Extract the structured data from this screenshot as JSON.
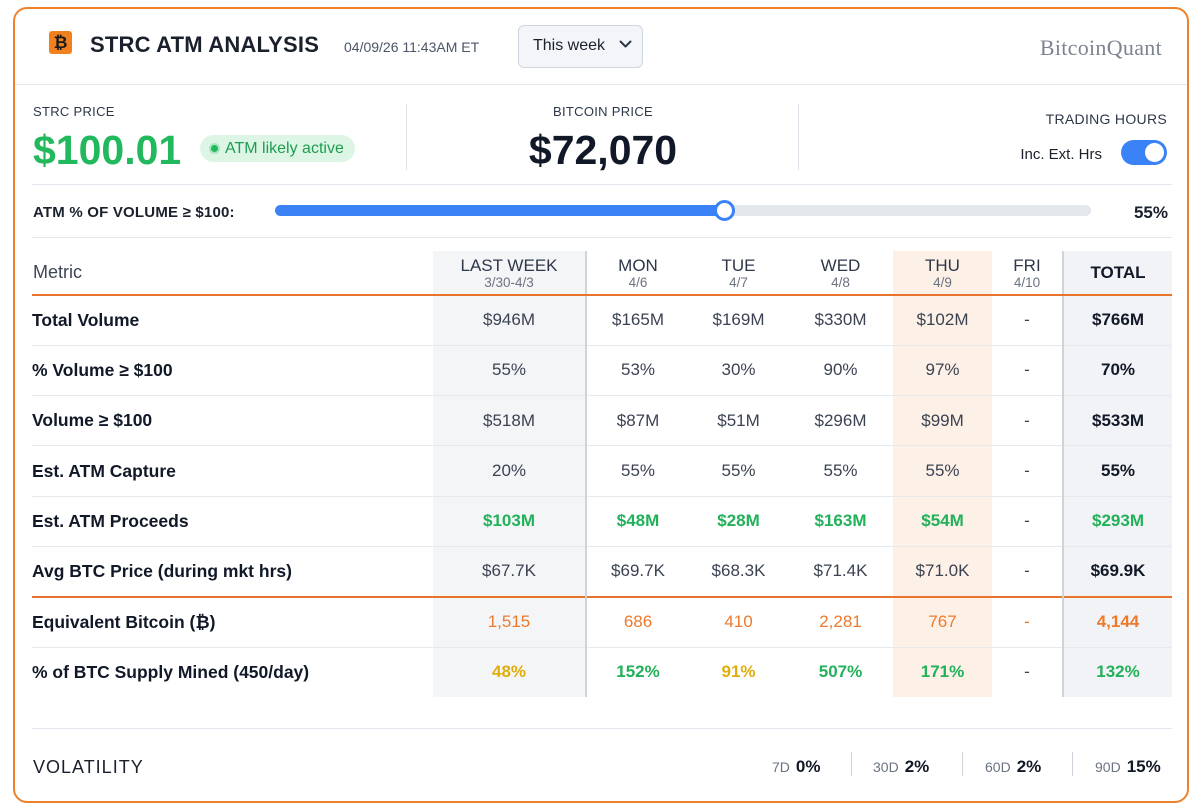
{
  "header": {
    "logo_glyph": "₿",
    "title": "STRC ATM ANALYSIS",
    "timestamp": "04/09/26 11:43AM ET",
    "period": {
      "selected": "This week",
      "chevron": "⌄"
    },
    "brand": "BitcoinQuant"
  },
  "prices": {
    "strc_label": "STRC PRICE",
    "strc_value": "$100.01",
    "atm_badge": "ATM likely active",
    "btc_label": "BITCOIN PRICE",
    "btc_value": "$72,070",
    "trading_label": "TRADING HOURS",
    "toggle_label": "Inc. Ext. Hrs",
    "toggle_on": true
  },
  "slider": {
    "label": "ATM % OF VOLUME ≥ $100:",
    "value_text": "55%",
    "fraction": 0.55
  },
  "table": {
    "metric_header": "Metric",
    "columns": [
      {
        "label": "LAST WEEK",
        "sub": "3/30-4/3"
      },
      {
        "label": "MON",
        "sub": "4/6"
      },
      {
        "label": "TUE",
        "sub": "4/7"
      },
      {
        "label": "WED",
        "sub": "4/8"
      },
      {
        "label": "THU",
        "sub": "4/9"
      },
      {
        "label": "FRI",
        "sub": "4/10"
      }
    ],
    "total_header": "TOTAL",
    "rows": [
      {
        "name": "Total Volume",
        "values": [
          "$946M",
          "$165M",
          "$169M",
          "$330M",
          "$102M",
          "-"
        ],
        "total": "$766M"
      },
      {
        "name": "% Volume ≥ $100",
        "values": [
          "55%",
          "53%",
          "30%",
          "90%",
          "97%",
          "-"
        ],
        "total": "70%"
      },
      {
        "name": "Volume ≥ $100",
        "values": [
          "$518M",
          "$87M",
          "$51M",
          "$296M",
          "$99M",
          "-"
        ],
        "total": "$533M"
      },
      {
        "name": "Est. ATM Capture",
        "values": [
          "20%",
          "55%",
          "55%",
          "55%",
          "55%",
          "-"
        ],
        "total": "55%"
      },
      {
        "name": "Est. ATM Proceeds",
        "values": [
          "$103M",
          "$48M",
          "$28M",
          "$163M",
          "$54M",
          "-"
        ],
        "total": "$293M"
      },
      {
        "name": "Avg BTC Price (during mkt hrs)",
        "values": [
          "$67.7K",
          "$69.7K",
          "$68.3K",
          "$71.4K",
          "$71.0K",
          "-"
        ],
        "total": "$69.9K"
      },
      {
        "name": "Equivalent Bitcoin (₿)",
        "values": [
          "1,515",
          "686",
          "410",
          "2,281",
          "767",
          "-"
        ],
        "total": "4,144"
      },
      {
        "name": "% of BTC Supply Mined (450/day)",
        "values": [
          "48%",
          "152%",
          "91%",
          "507%",
          "171%",
          "-"
        ],
        "total": "132%"
      }
    ]
  },
  "volatility": {
    "label": "VOLATILITY",
    "items": [
      {
        "period": "7D",
        "value": "0%"
      },
      {
        "period": "30D",
        "value": "2%"
      },
      {
        "period": "60D",
        "value": "2%"
      },
      {
        "period": "90D",
        "value": "15%"
      }
    ]
  },
  "colors": {
    "accent_orange": "#f0812b",
    "green": "#22b85c",
    "blue": "#3b82f6",
    "yellow": "#e0ad0d"
  }
}
